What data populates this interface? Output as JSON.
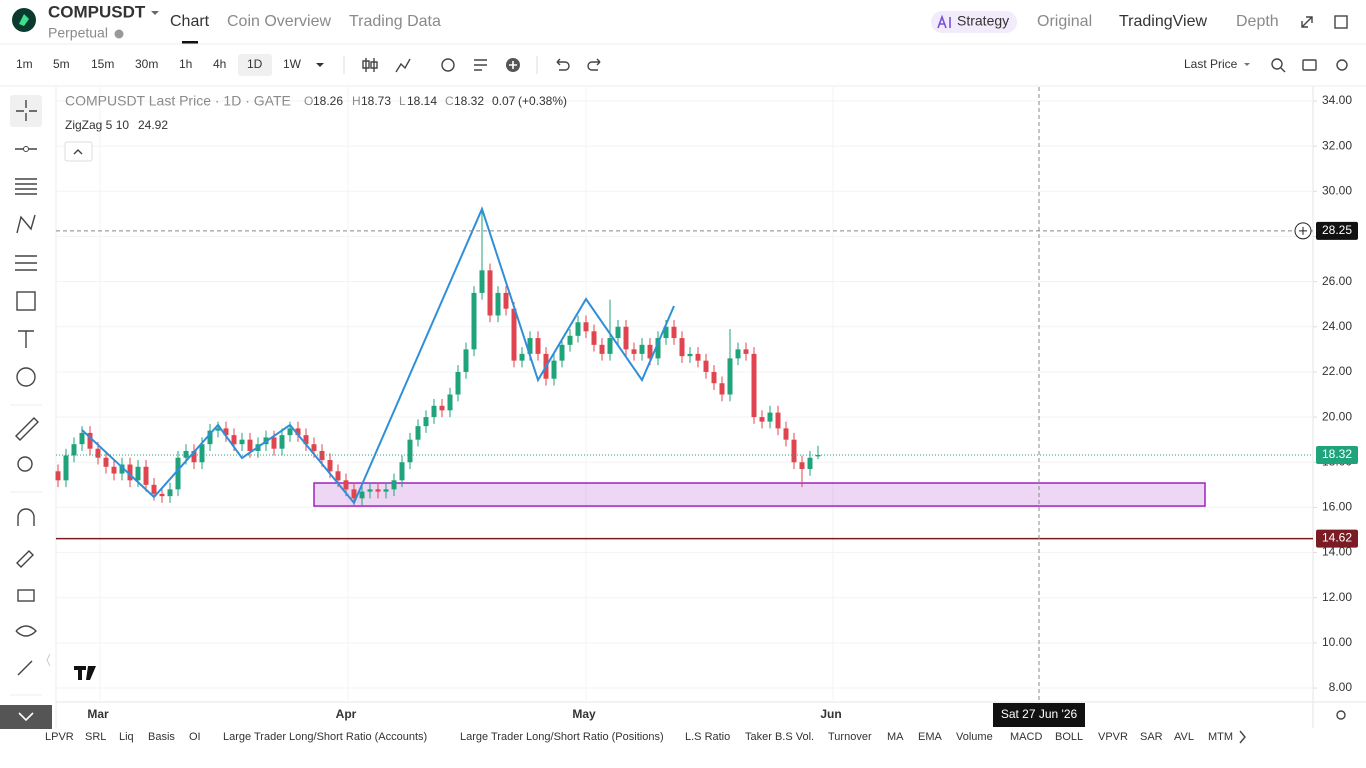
{
  "header": {
    "symbol": "COMPUSDT",
    "contract": "Perpetual",
    "tabs": [
      "Chart",
      "Coin Overview",
      "Trading Data"
    ],
    "strategy": "Strategy",
    "views": [
      "Original",
      "TradingView",
      "Depth"
    ]
  },
  "toolbar": {
    "intervals": [
      "1m",
      "5m",
      "15m",
      "30m",
      "1h",
      "4h",
      "1D",
      "1W"
    ],
    "price_type": "Last Price"
  },
  "legend": {
    "title": "COMPUSDT Last Price · 1D · GATE",
    "o": "O",
    "h": "H",
    "l": "L",
    "c": "C",
    "change": "0.07",
    "change_pct": "(+0.38%)",
    "indicator": "ZigZag 5 10"
  },
  "chart_data": {
    "type": "candlestick",
    "up_color": "#1fa37a",
    "down_color": "#e0454f",
    "series": {
      "open": [
        17.6,
        17.2,
        18.3,
        18.8,
        19.3,
        18.6,
        18.2,
        17.8,
        17.5,
        17.9,
        17.2,
        17.8,
        17.0,
        16.6,
        16.5,
        16.8,
        18.2,
        18.5,
        18.0,
        18.8,
        19.4,
        19.5,
        19.2,
        18.8,
        19.0,
        18.5,
        18.8,
        19.1,
        18.6,
        19.2,
        19.5,
        19.2,
        18.8,
        18.5,
        18.1,
        17.6,
        17.2,
        16.8,
        16.4,
        16.7,
        16.8,
        16.7,
        16.8,
        17.2,
        18.0,
        19.0,
        19.6,
        20.0,
        20.5,
        20.3,
        21.0,
        22.0,
        23.0,
        25.5,
        26.5,
        24.5,
        25.5,
        24.8,
        22.5,
        22.8,
        23.5,
        22.8,
        21.7,
        22.5,
        23.2,
        23.6,
        24.2,
        23.8,
        23.2,
        22.8,
        23.5,
        24.0,
        23.0,
        22.8,
        23.2,
        22.6,
        23.5,
        24.0,
        23.5,
        22.7,
        22.8,
        22.5,
        22.0,
        21.5,
        21.0,
        22.6,
        23.0,
        22.8,
        20.0,
        19.8,
        20.2,
        19.5,
        19.0,
        18.0,
        17.7,
        18.26
      ],
      "high": [
        17.9,
        18.6,
        19.1,
        19.6,
        19.6,
        18.9,
        18.5,
        18.1,
        18.2,
        18.2,
        18.1,
        18.1,
        17.3,
        16.9,
        17.1,
        18.5,
        18.8,
        18.8,
        19.1,
        19.7,
        19.8,
        19.8,
        19.5,
        19.3,
        19.3,
        19.1,
        19.4,
        19.4,
        19.5,
        19.8,
        19.8,
        19.5,
        19.1,
        18.8,
        18.4,
        17.9,
        17.5,
        17.1,
        17.0,
        17.1,
        17.1,
        17.1,
        17.5,
        18.3,
        19.3,
        19.9,
        20.3,
        20.8,
        20.8,
        21.3,
        22.3,
        23.3,
        25.8,
        29.3,
        26.8,
        25.8,
        25.8,
        25.1,
        23.1,
        23.8,
        23.8,
        23.1,
        22.8,
        23.5,
        23.9,
        24.5,
        24.5,
        24.1,
        23.5,
        25.2,
        24.3,
        24.3,
        23.3,
        23.5,
        23.5,
        23.8,
        24.3,
        24.3,
        23.8,
        23.1,
        23.1,
        22.8,
        22.3,
        21.8,
        23.9,
        23.3,
        23.3,
        23.1,
        20.3,
        20.5,
        20.5,
        19.8,
        19.3,
        18.3,
        18.5,
        18.73
      ],
      "low": [
        16.9,
        16.9,
        18.0,
        18.5,
        18.3,
        17.9,
        17.5,
        17.2,
        17.2,
        16.9,
        16.9,
        16.7,
        16.3,
        16.2,
        16.2,
        16.5,
        17.9,
        17.7,
        17.7,
        18.5,
        19.1,
        18.9,
        18.5,
        18.5,
        18.2,
        18.2,
        18.5,
        18.3,
        18.3,
        18.9,
        18.9,
        18.5,
        18.2,
        17.8,
        17.3,
        16.9,
        16.5,
        16.1,
        16.1,
        16.4,
        16.4,
        16.4,
        16.5,
        16.9,
        17.7,
        18.7,
        19.3,
        19.7,
        20.0,
        20.0,
        20.7,
        21.7,
        22.7,
        25.2,
        24.2,
        24.2,
        24.5,
        22.2,
        22.2,
        22.5,
        22.5,
        21.4,
        21.4,
        22.2,
        22.9,
        23.3,
        23.5,
        22.9,
        22.5,
        22.5,
        23.2,
        22.7,
        22.5,
        22.5,
        22.3,
        22.3,
        23.2,
        23.2,
        22.4,
        22.4,
        22.2,
        21.7,
        21.2,
        20.7,
        20.7,
        22.3,
        22.5,
        19.7,
        19.5,
        19.5,
        19.2,
        18.7,
        17.7,
        16.9,
        17.4,
        18.14
      ],
      "close": [
        17.2,
        18.3,
        18.8,
        19.3,
        18.6,
        18.2,
        17.8,
        17.5,
        17.9,
        17.2,
        17.8,
        17.0,
        16.6,
        16.5,
        16.8,
        18.2,
        18.5,
        18.0,
        18.8,
        19.4,
        19.5,
        19.2,
        18.8,
        19.0,
        18.5,
        18.8,
        19.1,
        18.6,
        19.2,
        19.5,
        19.2,
        18.8,
        18.5,
        18.1,
        17.6,
        17.2,
        16.8,
        16.4,
        16.7,
        16.8,
        16.7,
        16.8,
        17.2,
        18.0,
        19.0,
        19.6,
        20.0,
        20.5,
        20.3,
        21.0,
        22.0,
        23.0,
        25.5,
        26.5,
        24.5,
        25.5,
        24.8,
        22.5,
        22.8,
        23.5,
        22.8,
        21.7,
        22.5,
        23.2,
        23.6,
        24.2,
        23.8,
        23.2,
        22.8,
        23.5,
        24.0,
        23.0,
        22.8,
        23.2,
        22.6,
        23.5,
        24.0,
        23.5,
        22.7,
        22.8,
        22.5,
        22.0,
        21.5,
        21.0,
        22.6,
        23.0,
        22.8,
        20.0,
        19.8,
        20.2,
        19.5,
        19.0,
        18.0,
        17.7,
        18.2,
        18.32
      ]
    },
    "zigzag": {
      "color": "#2f8fd8",
      "indices": [
        3,
        12,
        20,
        23,
        29,
        37,
        53,
        60,
        66,
        73,
        77
      ],
      "values": [
        19.43,
        16.46,
        19.65,
        18.19,
        19.65,
        16.2,
        29.22,
        21.64,
        25.23,
        21.64,
        24.92
      ]
    },
    "zone": {
      "top": 17.08,
      "bottom": 16.06,
      "color": "#a020c0"
    },
    "alert_line": {
      "value": 14.62,
      "color": "#7b1c25"
    },
    "crosshair": {
      "price": 28.25,
      "date": "Sat 27 Jun '26"
    },
    "ylim": [
      7.47,
      34.62
    ],
    "yticks": [
      {
        "value": 34,
        "label": "34.00"
      },
      {
        "value": 32,
        "label": "32.00"
      },
      {
        "value": 30,
        "label": "30.00"
      },
      {
        "value": 28,
        "label": "28.00"
      },
      {
        "value": 26,
        "label": "26.00"
      },
      {
        "value": 24,
        "label": "24.00"
      },
      {
        "value": 22,
        "label": "22.00"
      },
      {
        "value": 20,
        "label": "20.00"
      },
      {
        "value": 18,
        "label": "18.00"
      },
      {
        "value": 16,
        "label": "16.00"
      },
      {
        "value": 14,
        "label": "14.00"
      },
      {
        "value": 12,
        "label": "12.00"
      },
      {
        "value": 10,
        "label": "10.00"
      },
      {
        "value": 8,
        "label": "8.00"
      }
    ],
    "xticks": [
      "Mar",
      "Apr",
      "May",
      "Jun"
    ],
    "grid": true
  },
  "indicators": [
    "LPVR",
    "SRL",
    "Liq",
    "Basis",
    "OI",
    "Large Trader Long/Short Ratio (Accounts)",
    "Large Trader Long/Short Ratio (Positions)",
    "L.S Ratio",
    "Taker B.S Vol.",
    "Turnover",
    "MA",
    "EMA",
    "Volume",
    "MACD",
    "BOLL",
    "VPVR",
    "SAR",
    "AVL",
    "MTM"
  ]
}
